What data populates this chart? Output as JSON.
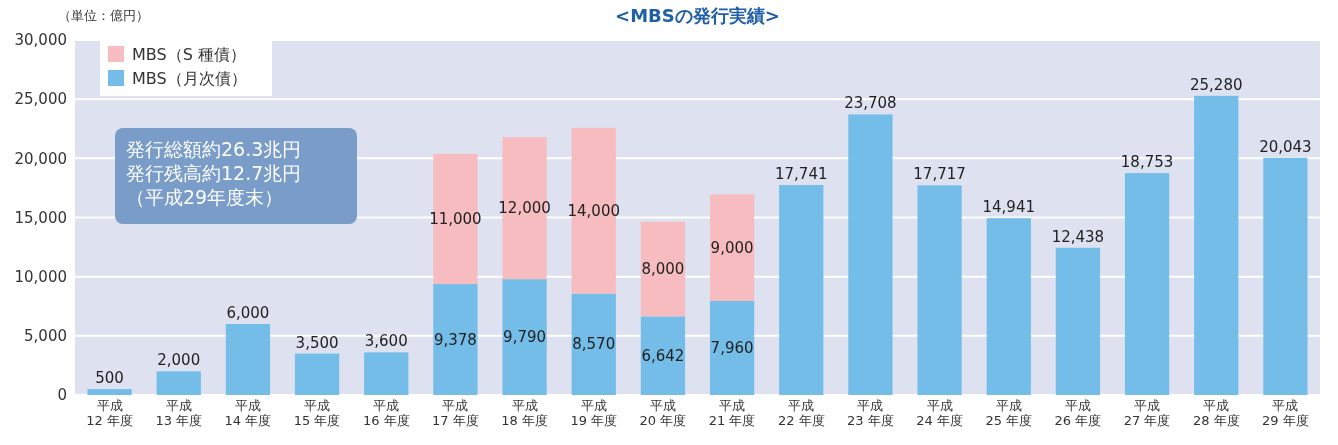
{
  "chart_data": {
    "type": "bar",
    "title": "<MBSの発行実績>",
    "stacked": true,
    "grid": "y",
    "legend": "top left",
    "categories": [
      "平成 12 年度",
      "平成 13 年度",
      "平成 14 年度",
      "平成 15 年度",
      "平成 16 年度",
      "平成 17 年度",
      "平成 18 年度",
      "平成 19 年度",
      "平成 20 年度",
      "平成 21 年度",
      "平成 22 年度",
      "平成 23 年度",
      "平成 24 年度",
      "平成 25 年度",
      "平成 26 年度",
      "平成 27 年度",
      "平成 28 年度",
      "平成 29 年度"
    ],
    "series": [
      {
        "name": "MBS（月次債）",
        "color": "#74bde8",
        "values": [
          500,
          2000,
          6000,
          3500,
          3600,
          9378,
          9790,
          8570,
          6642,
          7960,
          17741,
          23708,
          17717,
          14941,
          12438,
          18753,
          25280,
          20043
        ],
        "value_labels": [
          "500",
          "2,000",
          "6,000",
          "3,500",
          "3,600",
          "9,378",
          "9,790",
          "8,570",
          "6,642",
          "7,960",
          "17,741",
          "23,708",
          "17,717",
          "14,941",
          "12,438",
          "18,753",
          "25,280",
          "20,043"
        ]
      },
      {
        "name": "MBS（S 種債）",
        "color": "#f7bcbf",
        "values": [
          null,
          null,
          null,
          null,
          null,
          11000,
          12000,
          14000,
          8000,
          9000,
          null,
          null,
          null,
          null,
          null,
          null,
          null,
          null
        ],
        "value_labels": [
          null,
          null,
          null,
          null,
          null,
          "11,000",
          "12,000",
          "14,000",
          "8,000",
          "9,000",
          null,
          null,
          null,
          null,
          null,
          null,
          null,
          null
        ]
      }
    ],
    "ylim": [
      0,
      30000
    ],
    "yticks": [
      {
        "value": 0,
        "label": "0"
      },
      {
        "value": 5000,
        "label": "5,000"
      },
      {
        "value": 10000,
        "label": "10,000"
      },
      {
        "value": 15000,
        "label": "15,000"
      },
      {
        "value": 20000,
        "label": "20,000"
      },
      {
        "value": 25000,
        "label": "25,000"
      },
      {
        "value": 30000,
        "label": "30,000"
      }
    ],
    "annotations": [
      "（単位：億円）",
      "発行総額約26.3兆円",
      "発行残高約12.7兆円",
      "（平成29年度末）"
    ]
  }
}
